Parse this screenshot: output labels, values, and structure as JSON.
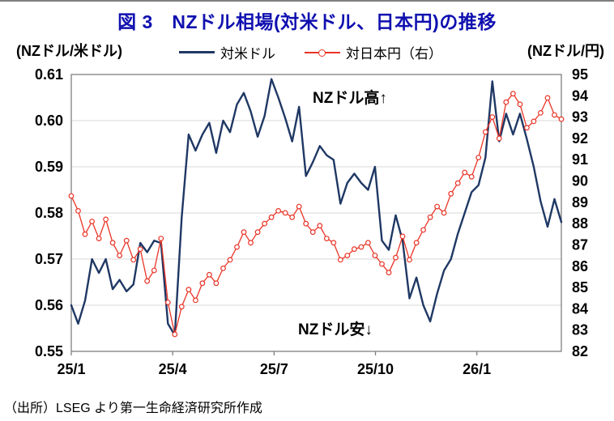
{
  "title": "図 3　NZドル相場(対米ドル、日本円)の推移",
  "source": "（出所）LSEG より第一生命経済研究所作成",
  "colors": {
    "title": "#1010B0",
    "navy": "#1F3864",
    "red": "#E93427",
    "grid": "#D9D9D9",
    "plot_border": "#7F7F7F",
    "axis_text": "#000000"
  },
  "chart_data": {
    "type": "line",
    "title": "図 3　NZドル相場(対米ドル、日本円)の推移",
    "xlabel": "",
    "grid": "horizontal",
    "legend_position": "top",
    "x_axis": {
      "tick_labels": [
        "25/1",
        "25/4",
        "25/7",
        "25/10",
        "26/1"
      ],
      "tick_months": [
        0,
        3,
        6,
        9,
        12
      ],
      "total_months": 14.5,
      "range_note": "Jan 2025 - mid Mar 2026"
    },
    "y_left": {
      "label": "(NZドル/米ドル)",
      "min": 0.55,
      "max": 0.61,
      "tick_step": 0.01,
      "ticks": [
        "0.61",
        "0.60",
        "0.59",
        "0.58",
        "0.57",
        "0.56",
        "0.55"
      ]
    },
    "y_right": {
      "label": "(NZドル/円)",
      "min": 82,
      "max": 95,
      "tick_step": 1,
      "ticks": [
        "95",
        "94",
        "93",
        "92",
        "91",
        "90",
        "89",
        "88",
        "87",
        "86",
        "85",
        "84",
        "83",
        "82"
      ]
    },
    "annotations": [
      {
        "text": "NZドル高↑",
        "position": "upper-middle"
      },
      {
        "text": "NZドル安↓",
        "position": "lower-middle"
      }
    ],
    "series": [
      {
        "name": "対米ドル",
        "axis": "left",
        "color": "#1F3864",
        "marker": "none",
        "values": [
          0.56,
          0.556,
          0.561,
          0.57,
          0.567,
          0.57,
          0.5635,
          0.5655,
          0.563,
          0.5645,
          0.5735,
          0.5715,
          0.574,
          0.5735,
          0.556,
          0.5535,
          0.579,
          0.597,
          0.5935,
          0.597,
          0.5995,
          0.593,
          0.6,
          0.5975,
          0.6035,
          0.606,
          0.602,
          0.5965,
          0.601,
          0.609,
          0.605,
          0.6005,
          0.5955,
          0.603,
          0.588,
          0.591,
          0.5945,
          0.5925,
          0.5915,
          0.582,
          0.5865,
          0.5885,
          0.5865,
          0.585,
          0.59,
          0.574,
          0.572,
          0.5795,
          0.574,
          0.5615,
          0.566,
          0.56,
          0.5565,
          0.5625,
          0.5675,
          0.57,
          0.5755,
          0.58,
          0.5845,
          0.586,
          0.592,
          0.6085,
          0.5955,
          0.6015,
          0.597,
          0.6015,
          0.596,
          0.59,
          0.5825,
          0.577,
          0.583,
          0.578
        ]
      },
      {
        "name": "対日本円（右）",
        "axis": "right",
        "color": "#E93427",
        "marker": "open-circle",
        "values": [
          89.3,
          88.6,
          87.5,
          88.1,
          87.3,
          88.2,
          87.1,
          86.5,
          87.2,
          86.3,
          86.8,
          85.3,
          85.8,
          87.3,
          84.3,
          82.8,
          84.1,
          84.9,
          84.4,
          85.2,
          85.6,
          85.2,
          85.9,
          86.3,
          86.9,
          87.6,
          87.1,
          87.6,
          88.0,
          88.3,
          88.6,
          88.5,
          88.3,
          88.8,
          88.0,
          87.6,
          87.9,
          87.3,
          87.1,
          86.3,
          86.5,
          86.8,
          86.9,
          87.1,
          86.5,
          86.1,
          85.7,
          86.4,
          87.4,
          86.3,
          87.1,
          87.7,
          88.3,
          88.8,
          88.5,
          89.4,
          89.9,
          90.4,
          90.2,
          91.1,
          92.3,
          93.0,
          92.0,
          93.7,
          94.1,
          93.6,
          92.5,
          92.8,
          93.2,
          93.9,
          93.1,
          92.9
        ]
      }
    ]
  }
}
